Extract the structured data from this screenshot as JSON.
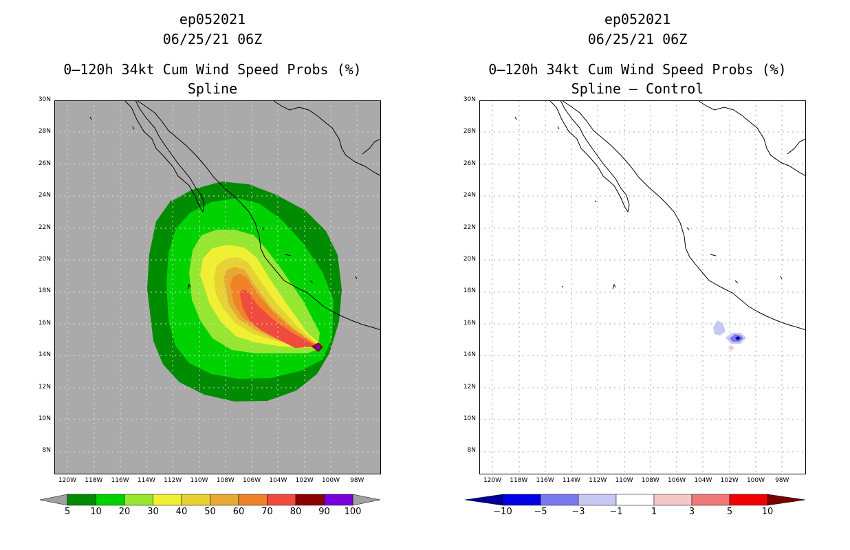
{
  "left": {
    "title1": "ep052021",
    "title2": "06/25/21 06Z",
    "title3": "0–120h 34kt Cum Wind Speed Probs (%)",
    "title4": "Spline",
    "colorbar": {
      "labels": [
        "5",
        "10",
        "20",
        "30",
        "40",
        "50",
        "60",
        "70",
        "80",
        "90",
        "100"
      ],
      "colors": [
        "#008c00",
        "#00d200",
        "#96e632",
        "#f0f032",
        "#e6d232",
        "#e6aa32",
        "#f08228",
        "#f04b3c",
        "#8c0000",
        "#7800dc"
      ],
      "end_color": "#a0a0a0"
    },
    "background_color": "#aaaaaa"
  },
  "right": {
    "title1": "ep052021",
    "title2": "06/25/21 06Z",
    "title3": "0–120h 34kt Cum Wind Speed Probs (%)",
    "title4": "Spline – Control",
    "colorbar": {
      "labels": [
        "−10",
        "−5",
        "−3",
        "−1",
        "1",
        "3",
        "5",
        "10"
      ],
      "colors": [
        "#0000e6",
        "#7878f0",
        "#c8c8f5",
        "#ffffff",
        "#f5c8c8",
        "#f07878",
        "#f00000"
      ],
      "end_left": "#000096",
      "end_right": "#780000"
    },
    "background_color": "#ffffff"
  },
  "axes": {
    "lat_labels": [
      "30N",
      "28N",
      "26N",
      "24N",
      "22N",
      "20N",
      "18N",
      "16N",
      "14N",
      "12N",
      "10N",
      "8N"
    ],
    "lon_labels": [
      "120W",
      "118W",
      "116W",
      "114W",
      "112W",
      "110W",
      "108W",
      "106W",
      "104W",
      "102W",
      "100W",
      "98W"
    ]
  }
}
